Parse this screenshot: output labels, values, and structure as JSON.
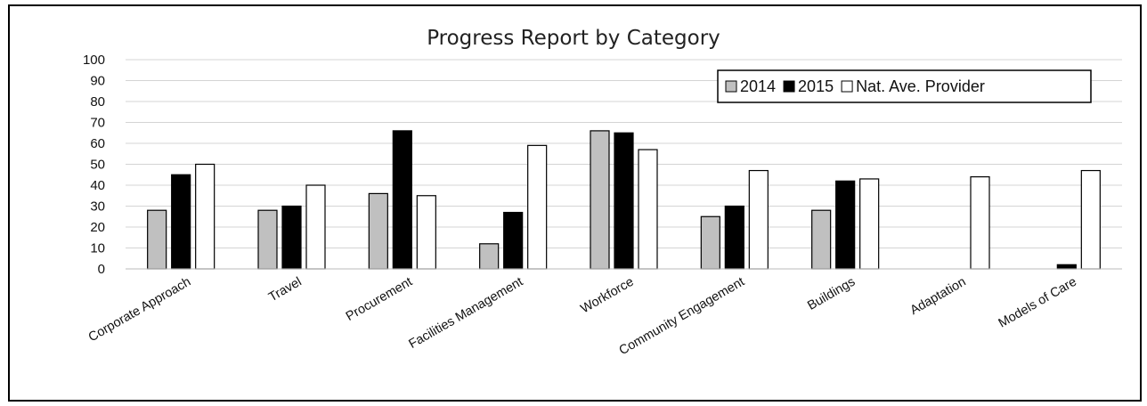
{
  "chart_data": {
    "type": "bar",
    "title": "Progress Report by Category",
    "xlabel": "",
    "ylabel": "",
    "ylim": [
      0,
      100
    ],
    "yticks": [
      0,
      10,
      20,
      30,
      40,
      50,
      60,
      70,
      80,
      90,
      100
    ],
    "grid": true,
    "legend_position": "top-right",
    "categories": [
      "Corporate Approach",
      "Travel",
      "Procurement",
      "Facilities Management",
      "Workforce",
      "Community Engagement",
      "Buildings",
      "Adaptation",
      "Models of Care"
    ],
    "series": [
      {
        "name": "2014",
        "color": "#c0c0c0",
        "values": [
          28,
          28,
          36,
          12,
          66,
          25,
          28,
          0,
          0
        ]
      },
      {
        "name": "2015",
        "color": "#000000",
        "values": [
          45,
          30,
          66,
          27,
          65,
          30,
          42,
          0,
          2
        ]
      },
      {
        "name": "Nat. Ave. Provider",
        "color": "#ffffff",
        "values": [
          50,
          40,
          35,
          59,
          57,
          47,
          43,
          44,
          47
        ]
      }
    ]
  }
}
